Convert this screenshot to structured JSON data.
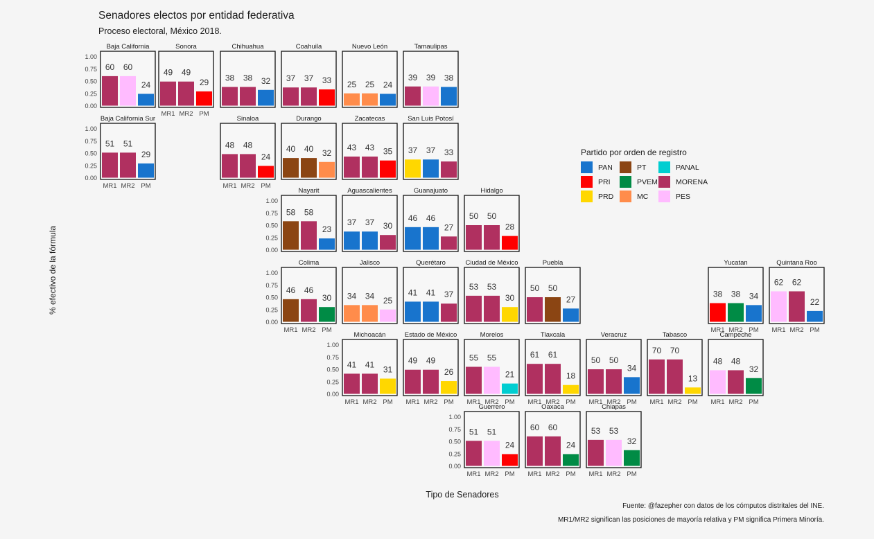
{
  "chart_data": {
    "type": "bar",
    "title": "Senadores electos por entidad federativa",
    "subtitle": "Proceso electoral, México 2018.",
    "xlabel": "Tipo de Senadores",
    "ylabel": "% efectivo de la fórmula",
    "ylim": [
      0,
      1
    ],
    "yticks": [
      "0.00",
      "0.25",
      "0.50",
      "0.75",
      "1.00"
    ],
    "categories": [
      "MR1",
      "MR2",
      "PM"
    ],
    "caption_lines": [
      "Fuente: @fazepher con datos de los cómputos distritales del INE.",
      "MR1/MR2 significan las posiciones de mayoría relativa y PM significa Primera Minoría."
    ],
    "legend": {
      "title": "Partido por orden de registro",
      "placement": "right",
      "items": [
        {
          "party": "PAN",
          "color": "#1874CD"
        },
        {
          "party": "PRI",
          "color": "#FF0000"
        },
        {
          "party": "PRD",
          "color": "#FFD700"
        },
        {
          "party": "PT",
          "color": "#8B4513"
        },
        {
          "party": "PVEM",
          "color": "#008B45"
        },
        {
          "party": "MC",
          "color": "#FF8C4B"
        },
        {
          "party": "PANAL",
          "color": "#00CED1"
        },
        {
          "party": "MORENA",
          "color": "#B03060"
        },
        {
          "party": "PES",
          "color": "#FFBBFF"
        }
      ]
    },
    "panels": [
      {
        "state": "Baja California",
        "labels": [
          "60",
          "60",
          "24"
        ],
        "values": [
          0.6,
          0.6,
          0.24
        ],
        "parties": [
          "MORENA",
          "PES",
          "PAN"
        ]
      },
      {
        "state": "Sonora",
        "labels": [
          "49",
          "49",
          "29"
        ],
        "values": [
          0.49,
          0.49,
          0.29
        ],
        "parties": [
          "MORENA",
          "MORENA",
          "PRI"
        ]
      },
      {
        "state": "Chihuahua",
        "labels": [
          "38",
          "38",
          "32"
        ],
        "values": [
          0.38,
          0.38,
          0.32
        ],
        "parties": [
          "MORENA",
          "MORENA",
          "PAN"
        ]
      },
      {
        "state": "Coahuila",
        "labels": [
          "37",
          "37",
          "33"
        ],
        "values": [
          0.37,
          0.37,
          0.33
        ],
        "parties": [
          "MORENA",
          "MORENA",
          "PRI"
        ]
      },
      {
        "state": "Nuevo León",
        "labels": [
          "25",
          "25",
          "24"
        ],
        "values": [
          0.25,
          0.25,
          0.24
        ],
        "parties": [
          "MC",
          "MC",
          "PAN"
        ]
      },
      {
        "state": "Tamaulipas",
        "labels": [
          "39",
          "39",
          "38"
        ],
        "values": [
          0.39,
          0.39,
          0.38
        ],
        "parties": [
          "MORENA",
          "PES",
          "PAN"
        ]
      },
      {
        "state": "Baja California Sur",
        "labels": [
          "51",
          "51",
          "29"
        ],
        "values": [
          0.51,
          0.51,
          0.29
        ],
        "parties": [
          "MORENA",
          "MORENA",
          "PAN"
        ]
      },
      {
        "state": "Sinaloa",
        "labels": [
          "48",
          "48",
          "24"
        ],
        "values": [
          0.48,
          0.48,
          0.24
        ],
        "parties": [
          "MORENA",
          "MORENA",
          "PRI"
        ]
      },
      {
        "state": "Durango",
        "labels": [
          "40",
          "40",
          "32"
        ],
        "values": [
          0.4,
          0.4,
          0.32
        ],
        "parties": [
          "PT",
          "PT",
          "MC"
        ]
      },
      {
        "state": "Zacatecas",
        "labels": [
          "43",
          "43",
          "35"
        ],
        "values": [
          0.43,
          0.43,
          0.35
        ],
        "parties": [
          "MORENA",
          "MORENA",
          "PRI"
        ]
      },
      {
        "state": "San Luis Potosí",
        "labels": [
          "37",
          "37",
          "33"
        ],
        "values": [
          0.37,
          0.37,
          0.33
        ],
        "parties": [
          "PRD",
          "PAN",
          "MORENA"
        ]
      },
      {
        "state": "Nayarit",
        "labels": [
          "58",
          "58",
          "23"
        ],
        "values": [
          0.58,
          0.58,
          0.23
        ],
        "parties": [
          "PT",
          "MORENA",
          "PAN"
        ]
      },
      {
        "state": "Aguascalientes",
        "labels": [
          "37",
          "37",
          "30"
        ],
        "values": [
          0.37,
          0.37,
          0.3
        ],
        "parties": [
          "PAN",
          "PAN",
          "MORENA"
        ]
      },
      {
        "state": "Guanajuato",
        "labels": [
          "46",
          "46",
          "27"
        ],
        "values": [
          0.46,
          0.46,
          0.27
        ],
        "parties": [
          "PAN",
          "PAN",
          "MORENA"
        ]
      },
      {
        "state": "Hidalgo",
        "labels": [
          "50",
          "50",
          "28"
        ],
        "values": [
          0.5,
          0.5,
          0.28
        ],
        "parties": [
          "MORENA",
          "MORENA",
          "PRI"
        ]
      },
      {
        "state": "Colima",
        "labels": [
          "46",
          "46",
          "30"
        ],
        "values": [
          0.46,
          0.46,
          0.3
        ],
        "parties": [
          "PT",
          "MORENA",
          "PVEM"
        ]
      },
      {
        "state": "Jalisco",
        "labels": [
          "34",
          "34",
          "25"
        ],
        "values": [
          0.34,
          0.34,
          0.25
        ],
        "parties": [
          "MC",
          "MC",
          "PES"
        ]
      },
      {
        "state": "Querétaro",
        "labels": [
          "41",
          "41",
          "37"
        ],
        "values": [
          0.41,
          0.41,
          0.37
        ],
        "parties": [
          "PAN",
          "PAN",
          "MORENA"
        ]
      },
      {
        "state": "Ciudad de México",
        "labels": [
          "53",
          "53",
          "30"
        ],
        "values": [
          0.53,
          0.53,
          0.3
        ],
        "parties": [
          "MORENA",
          "MORENA",
          "PRD"
        ]
      },
      {
        "state": "Puebla",
        "labels": [
          "50",
          "50",
          "27"
        ],
        "values": [
          0.5,
          0.5,
          0.27
        ],
        "parties": [
          "MORENA",
          "PT",
          "PAN"
        ]
      },
      {
        "state": "Yucatan",
        "labels": [
          "38",
          "38",
          "34"
        ],
        "values": [
          0.38,
          0.38,
          0.34
        ],
        "parties": [
          "PRI",
          "PVEM",
          "PAN"
        ]
      },
      {
        "state": "Quintana Roo",
        "labels": [
          "62",
          "62",
          "22"
        ],
        "values": [
          0.62,
          0.62,
          0.22
        ],
        "parties": [
          "PES",
          "MORENA",
          "PAN"
        ]
      },
      {
        "state": "Michoacán",
        "labels": [
          "41",
          "41",
          "31"
        ],
        "values": [
          0.41,
          0.41,
          0.31
        ],
        "parties": [
          "MORENA",
          "MORENA",
          "PRD"
        ]
      },
      {
        "state": "Estado de México",
        "labels": [
          "49",
          "49",
          "26"
        ],
        "values": [
          0.49,
          0.49,
          0.26
        ],
        "parties": [
          "MORENA",
          "MORENA",
          "PRD"
        ]
      },
      {
        "state": "Morelos",
        "labels": [
          "55",
          "55",
          "21"
        ],
        "values": [
          0.55,
          0.55,
          0.21
        ],
        "parties": [
          "MORENA",
          "PES",
          "PANAL"
        ]
      },
      {
        "state": "Tlaxcala",
        "labels": [
          "61",
          "61",
          "18"
        ],
        "values": [
          0.61,
          0.61,
          0.18
        ],
        "parties": [
          "MORENA",
          "MORENA",
          "PRD"
        ]
      },
      {
        "state": "Veracruz",
        "labels": [
          "50",
          "50",
          "34"
        ],
        "values": [
          0.5,
          0.5,
          0.34
        ],
        "parties": [
          "MORENA",
          "MORENA",
          "PAN"
        ]
      },
      {
        "state": "Tabasco",
        "labels": [
          "70",
          "70",
          "13"
        ],
        "values": [
          0.7,
          0.7,
          0.13
        ],
        "parties": [
          "MORENA",
          "MORENA",
          "PRD"
        ]
      },
      {
        "state": "Campeche",
        "labels": [
          "48",
          "48",
          "32"
        ],
        "values": [
          0.48,
          0.48,
          0.32
        ],
        "parties": [
          "PES",
          "MORENA",
          "PVEM"
        ]
      },
      {
        "state": "Guerrero",
        "labels": [
          "51",
          "51",
          "24"
        ],
        "values": [
          0.51,
          0.51,
          0.24
        ],
        "parties": [
          "MORENA",
          "PES",
          "PRI"
        ]
      },
      {
        "state": "Oaxaca",
        "labels": [
          "60",
          "60",
          "24"
        ],
        "values": [
          0.6,
          0.6,
          0.24
        ],
        "parties": [
          "MORENA",
          "MORENA",
          "PVEM"
        ]
      },
      {
        "state": "Chiapas",
        "labels": [
          "53",
          "53",
          "32"
        ],
        "values": [
          0.53,
          0.53,
          0.32
        ],
        "parties": [
          "MORENA",
          "PES",
          "PVEM"
        ]
      }
    ]
  }
}
